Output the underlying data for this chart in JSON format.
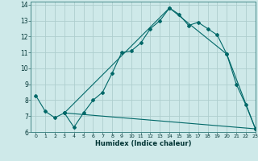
{
  "xlabel": "Humidex (Indice chaleur)",
  "xlim": [
    -0.5,
    23
  ],
  "ylim": [
    6,
    14.2
  ],
  "yticks": [
    6,
    7,
    8,
    9,
    10,
    11,
    12,
    13,
    14
  ],
  "xticks": [
    0,
    1,
    2,
    3,
    4,
    5,
    6,
    7,
    8,
    9,
    10,
    11,
    12,
    13,
    14,
    15,
    16,
    17,
    18,
    19,
    20,
    21,
    22,
    23
  ],
  "bg_color": "#cee9e9",
  "grid_color": "#aecece",
  "line_color": "#006868",
  "line1_x": [
    0,
    1,
    2,
    3,
    4,
    5,
    6,
    7,
    8,
    9,
    10,
    11,
    12,
    13,
    14,
    15,
    16,
    17,
    18,
    19,
    20,
    21,
    22,
    23
  ],
  "line1_y": [
    8.3,
    7.3,
    6.9,
    7.2,
    6.3,
    7.2,
    8.0,
    8.5,
    9.7,
    11.0,
    11.1,
    11.6,
    12.5,
    13.0,
    13.8,
    13.4,
    12.7,
    12.9,
    12.5,
    12.1,
    10.9,
    9.0,
    7.7,
    6.2
  ],
  "line2_x": [
    3,
    14,
    20,
    23
  ],
  "line2_y": [
    7.2,
    13.8,
    10.9,
    6.2
  ],
  "line3_x": [
    3,
    23
  ],
  "line3_y": [
    7.2,
    6.2
  ]
}
